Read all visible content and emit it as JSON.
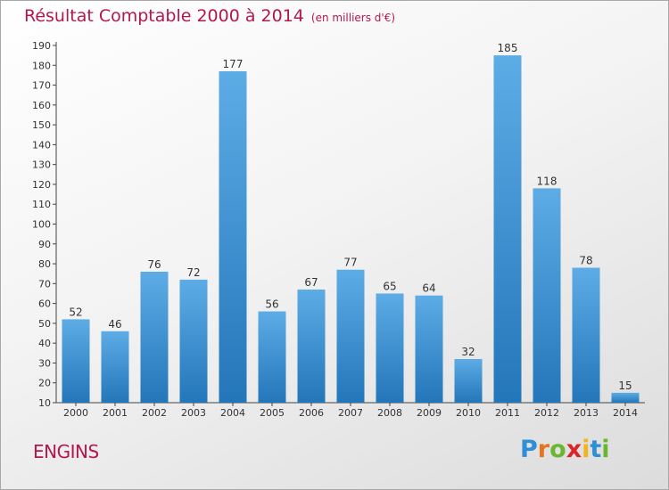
{
  "header": {
    "title": "Résultat Comptable 2000 à 2014",
    "unit": "(en milliers d'€)"
  },
  "commune": "ENGINS",
  "logo": {
    "text": "Proxiti",
    "letter_colors": [
      "#2e8ed6",
      "#e8731e",
      "#6bb531",
      "#d8262c",
      "#f2b41c",
      "#2e8ed6",
      "#6bb531"
    ]
  },
  "colors": {
    "title": "#b5174c",
    "bar_light": "#5dace6",
    "bar_dark": "#2376b9",
    "axis": "#444444"
  },
  "chart_data": {
    "type": "bar",
    "title": "Résultat Comptable 2000 à 2014",
    "xlabel": "",
    "ylabel": "",
    "categories": [
      "2000",
      "2001",
      "2002",
      "2003",
      "2004",
      "2005",
      "2006",
      "2007",
      "2008",
      "2009",
      "2010",
      "2011",
      "2012",
      "2013",
      "2014"
    ],
    "values": [
      52,
      46,
      76,
      72,
      177,
      56,
      67,
      77,
      65,
      64,
      32,
      185,
      118,
      78,
      15
    ],
    "ylim": [
      10,
      190
    ],
    "yticks": [
      10,
      20,
      30,
      40,
      50,
      60,
      70,
      80,
      90,
      100,
      110,
      120,
      130,
      140,
      150,
      160,
      170,
      180,
      190
    ],
    "grid": false,
    "legend": "none"
  }
}
